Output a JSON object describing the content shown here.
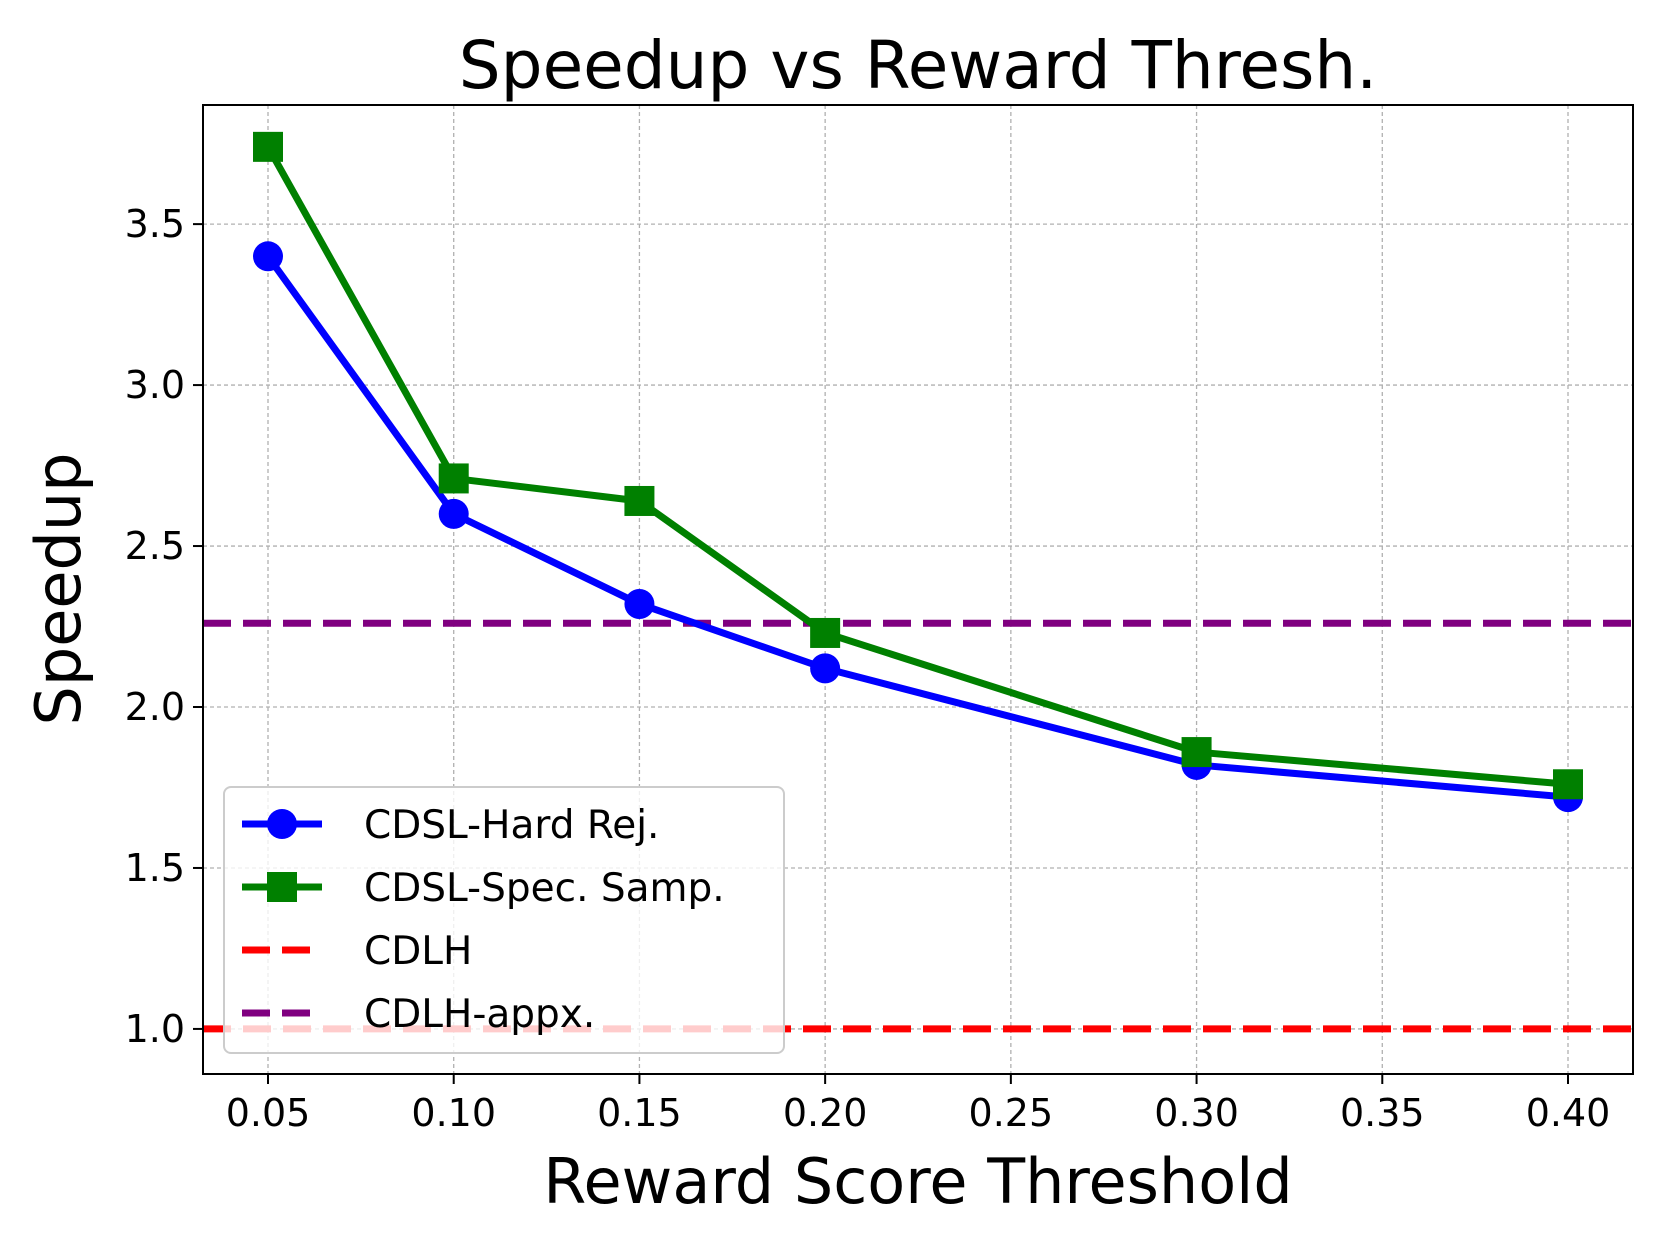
{
  "chart_data": {
    "type": "line",
    "title": "Speedup vs Reward Thresh.",
    "xlabel": "Reward Score Threshold",
    "ylabel": "Speedup",
    "xlim": [
      0.0325,
      0.4175
    ],
    "ylim": [
      0.86,
      3.87
    ],
    "xticks": [
      "0.05",
      "0.10",
      "0.15",
      "0.20",
      "0.25",
      "0.30",
      "0.35",
      "0.40"
    ],
    "yticks": [
      "1.0",
      "1.5",
      "2.0",
      "2.5",
      "3.0",
      "3.5"
    ],
    "grid": true,
    "legend_position": "lower-left",
    "series": [
      {
        "name": "CDSL-Hard Rej.",
        "marker": "circle",
        "style": "solid",
        "color": "#0000ff",
        "x": [
          0.05,
          0.1,
          0.15,
          0.2,
          0.3,
          0.4
        ],
        "y": [
          3.4,
          2.6,
          2.32,
          2.12,
          1.82,
          1.72
        ]
      },
      {
        "name": "CDSL-Spec. Samp.",
        "marker": "square",
        "style": "solid",
        "color": "#008000",
        "x": [
          0.05,
          0.1,
          0.15,
          0.2,
          0.3,
          0.4
        ],
        "y": [
          3.74,
          2.71,
          2.64,
          2.23,
          1.86,
          1.76
        ]
      },
      {
        "name": "CDLH",
        "marker": "none",
        "style": "dashed-horizontal",
        "color": "#ff0000",
        "y": 1.0
      },
      {
        "name": "CDLH-appx.",
        "marker": "none",
        "style": "dashed-horizontal",
        "color": "#800080",
        "y": 2.26
      }
    ]
  }
}
